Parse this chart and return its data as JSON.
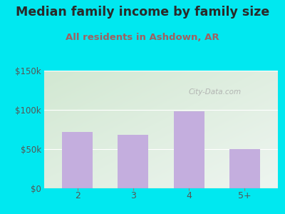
{
  "title": "Median family income by family size",
  "subtitle": "All residents in Ashdown, AR",
  "categories": [
    "2",
    "3",
    "4",
    "5+"
  ],
  "values": [
    72000,
    68000,
    98000,
    50000
  ],
  "bar_color": "#c4aede",
  "ylim": [
    0,
    150000
  ],
  "yticks": [
    0,
    50000,
    100000,
    150000
  ],
  "ytick_labels": [
    "$0",
    "$50k",
    "$100k",
    "$150k"
  ],
  "background_outer": "#00e8f0",
  "background_inner_top_left": "#d4ead4",
  "background_inner_bottom_right": "#f0f4ff",
  "title_color": "#2a2a2a",
  "subtitle_color": "#a06060",
  "tick_color": "#555555",
  "xtick_color": "#555555",
  "watermark": "City-Data.com",
  "title_fontsize": 12.5,
  "subtitle_fontsize": 9.5,
  "grid_color": "#cccccc"
}
